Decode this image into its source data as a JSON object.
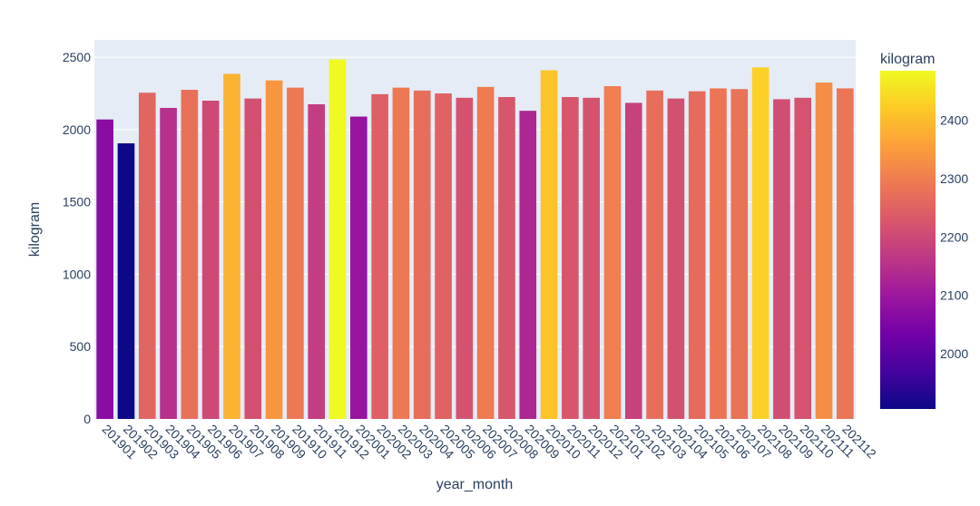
{
  "chart_data": {
    "type": "bar",
    "title": "",
    "xlabel": "year_month",
    "ylabel": "kilogram",
    "ylim": [
      0,
      2620
    ],
    "yticks": [
      0,
      500,
      1000,
      1500,
      2000,
      2500
    ],
    "grid": true,
    "colorbar": {
      "title": "kilogram",
      "range": [
        1905,
        2485
      ],
      "ticks": [
        2000,
        2100,
        2200,
        2300,
        2400
      ],
      "colorscale": [
        "#0d0887",
        "#46039f",
        "#7201a8",
        "#9c179e",
        "#bd3786",
        "#d8576b",
        "#ed7953",
        "#fb9f3a",
        "#fdca26",
        "#f0f921"
      ]
    },
    "categories": [
      "201901",
      "201902",
      "201903",
      "201904",
      "201905",
      "201906",
      "201907",
      "201908",
      "201909",
      "201910",
      "201911",
      "201912",
      "202001",
      "202002",
      "202003",
      "202004",
      "202005",
      "202006",
      "202007",
      "202008",
      "202009",
      "202010",
      "202011",
      "202012",
      "202101",
      "202102",
      "202103",
      "202104",
      "202105",
      "202106",
      "202107",
      "202108",
      "202109",
      "202110",
      "202111",
      "202112"
    ],
    "values": [
      2070,
      1905,
      2255,
      2150,
      2275,
      2200,
      2385,
      2215,
      2340,
      2290,
      2175,
      2485,
      2090,
      2245,
      2290,
      2270,
      2250,
      2220,
      2295,
      2225,
      2130,
      2410,
      2225,
      2220,
      2300,
      2185,
      2270,
      2215,
      2265,
      2285,
      2280,
      2430,
      2210,
      2220,
      2325,
      2285
    ]
  }
}
